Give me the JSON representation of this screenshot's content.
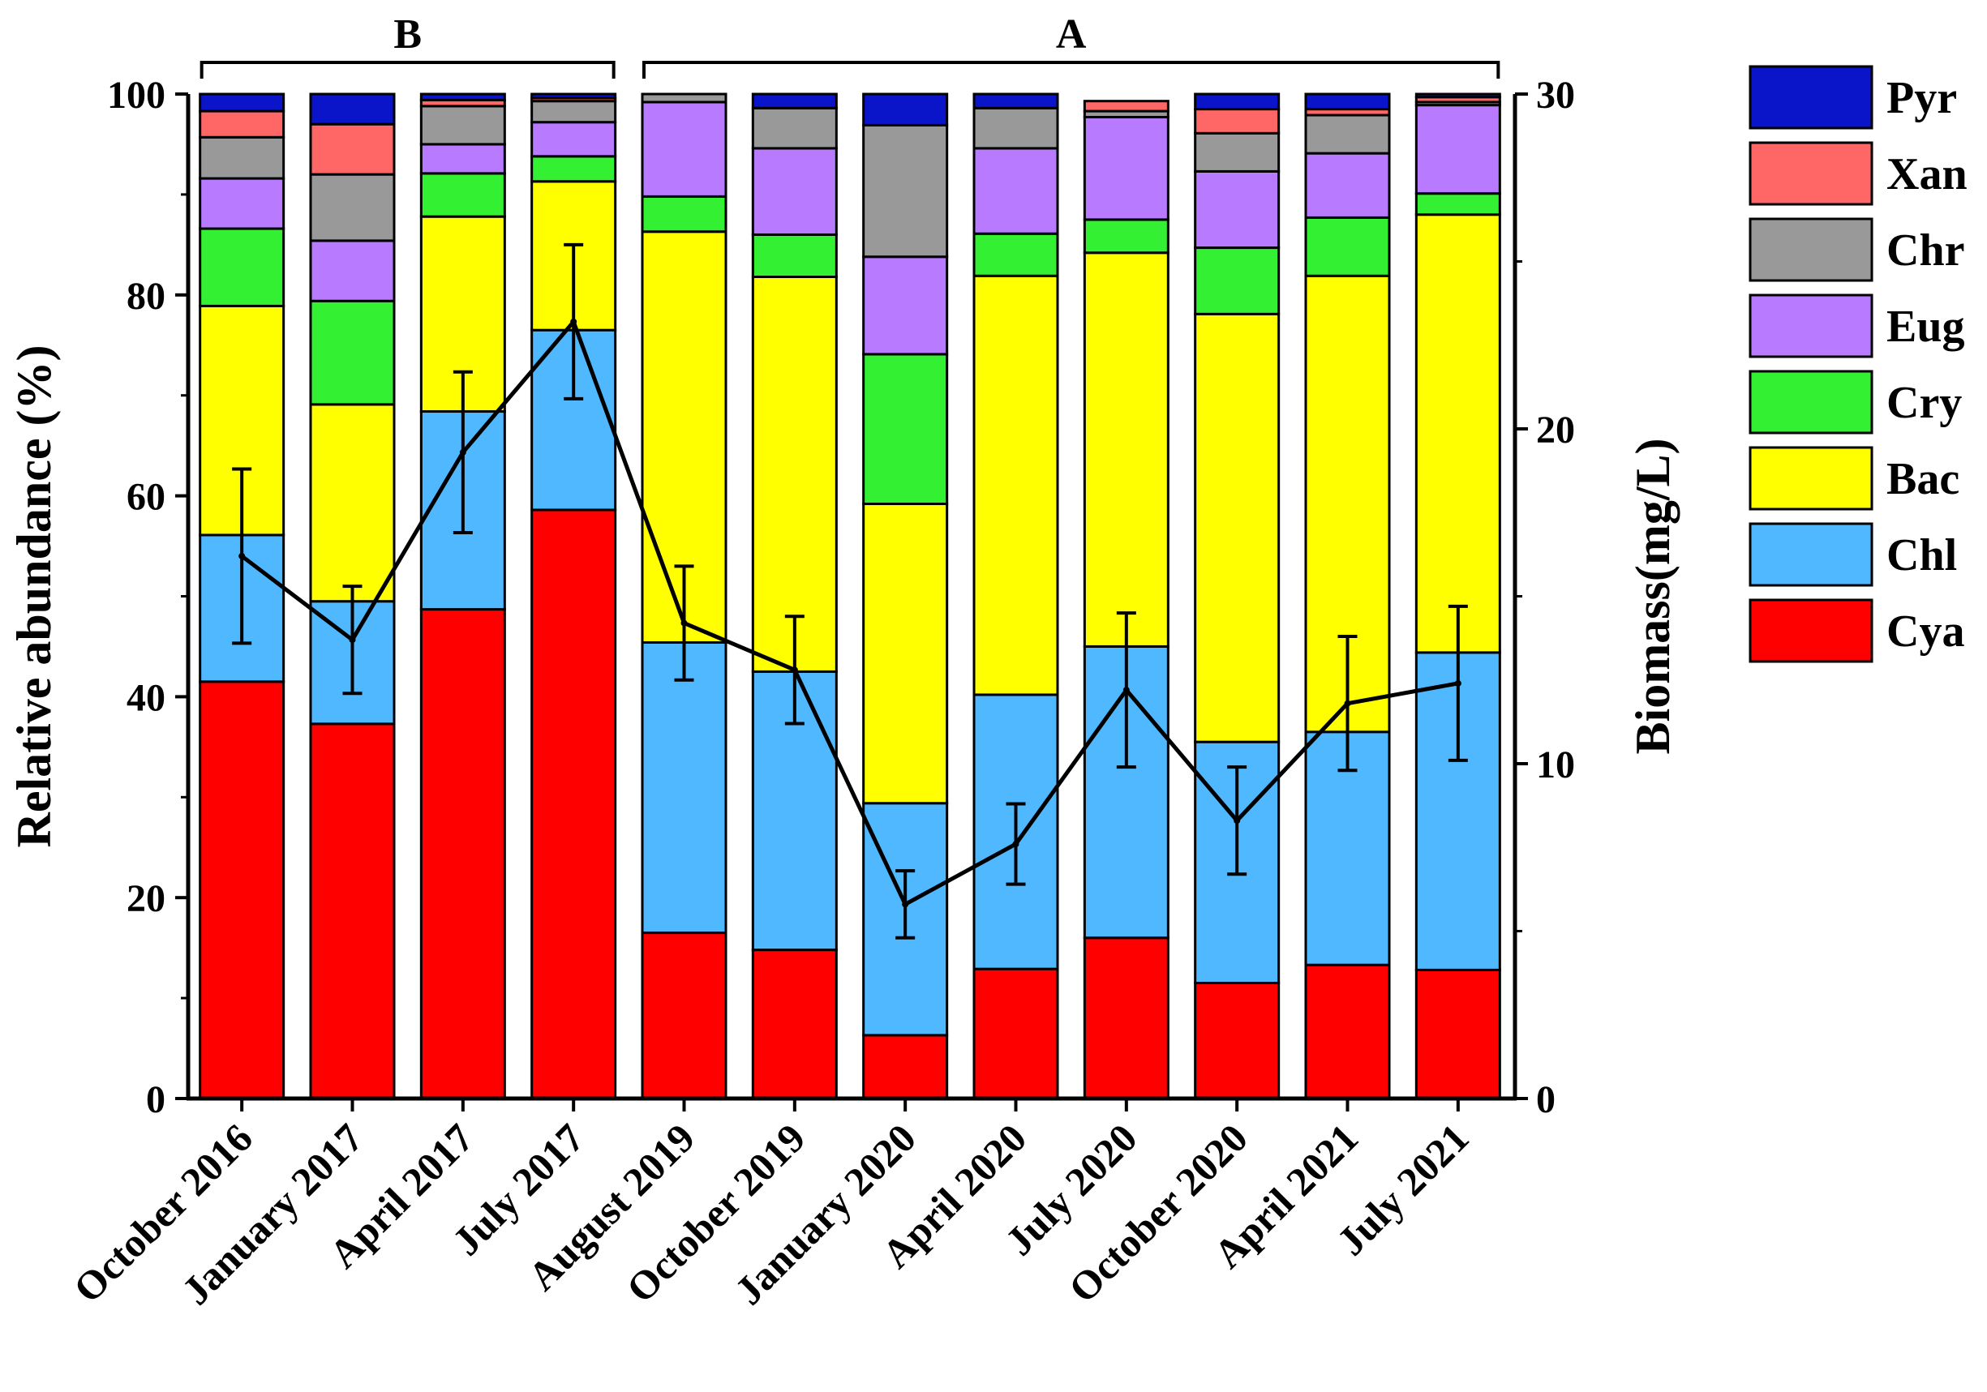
{
  "chart_data": {
    "type": "bar",
    "stacked": true,
    "categories": [
      "October 2016",
      "January 2017",
      "April 2017",
      "July 2017",
      "August 2019",
      "October 2019",
      "January 2020",
      "April 2020",
      "July 2020",
      "October 2020",
      "April 2021",
      "July 2021"
    ],
    "ylabel": "Relative abundance (%)",
    "y2label": "Biomass(mg/L)",
    "ylim": [
      0,
      100
    ],
    "y2lim": [
      0,
      30
    ],
    "yticks": [
      0,
      20,
      40,
      60,
      80,
      100
    ],
    "y2ticks": [
      0,
      10,
      20,
      30
    ],
    "legend_position": "right",
    "series": [
      {
        "name": "Cya",
        "color": "#ff0000",
        "values": [
          41.5,
          37.3,
          48.7,
          58.6,
          16.5,
          14.8,
          6.3,
          12.9,
          16.0,
          11.5,
          13.3,
          12.8
        ]
      },
      {
        "name": "Chl",
        "color": "#4fb8ff",
        "values": [
          14.6,
          12.2,
          19.7,
          17.9,
          28.9,
          27.7,
          23.1,
          27.3,
          29.0,
          24.0,
          23.2,
          31.6
        ]
      },
      {
        "name": "Bac",
        "color": "#ffff00",
        "values": [
          22.8,
          19.6,
          19.4,
          14.8,
          40.9,
          39.3,
          29.8,
          41.7,
          39.2,
          42.6,
          45.4,
          43.6
        ]
      },
      {
        "name": "Cry",
        "color": "#33f033",
        "values": [
          7.7,
          10.3,
          4.3,
          2.5,
          3.5,
          4.2,
          14.9,
          4.2,
          3.3,
          6.6,
          5.8,
          2.1
        ]
      },
      {
        "name": "Eug",
        "color": "#b87aff",
        "values": [
          5.0,
          6.0,
          2.9,
          3.4,
          9.4,
          8.6,
          9.7,
          8.5,
          10.2,
          7.6,
          6.4,
          8.8
        ]
      },
      {
        "name": "Chr",
        "color": "#999999",
        "values": [
          4.1,
          6.6,
          3.8,
          2.1,
          0.8,
          4.0,
          13.1,
          4.0,
          0.6,
          3.8,
          3.8,
          0.3
        ]
      },
      {
        "name": "Xan",
        "color": "#ff6666",
        "values": [
          2.6,
          5.0,
          0.6,
          0.3,
          0.0,
          0.0,
          0.0,
          0.0,
          1.0,
          2.4,
          0.6,
          0.5
        ]
      },
      {
        "name": "Pyr",
        "color": "#0a14c8",
        "values": [
          1.7,
          3.0,
          0.6,
          0.4,
          0.0,
          1.4,
          3.1,
          1.4,
          0.0,
          1.5,
          1.5,
          0.3
        ]
      }
    ],
    "biomass": {
      "name": "Biomass",
      "values": [
        16.2,
        13.7,
        19.3,
        23.2,
        14.2,
        12.8,
        5.8,
        7.6,
        12.2,
        8.3,
        11.8,
        12.4
      ],
      "error": [
        2.6,
        1.6,
        2.4,
        2.3,
        1.7,
        1.6,
        1.0,
        1.2,
        2.3,
        1.6,
        2.0,
        2.3
      ]
    },
    "groups": [
      {
        "label": "B",
        "from": 0,
        "to": 3
      },
      {
        "label": "A",
        "from": 4,
        "to": 11
      }
    ]
  }
}
